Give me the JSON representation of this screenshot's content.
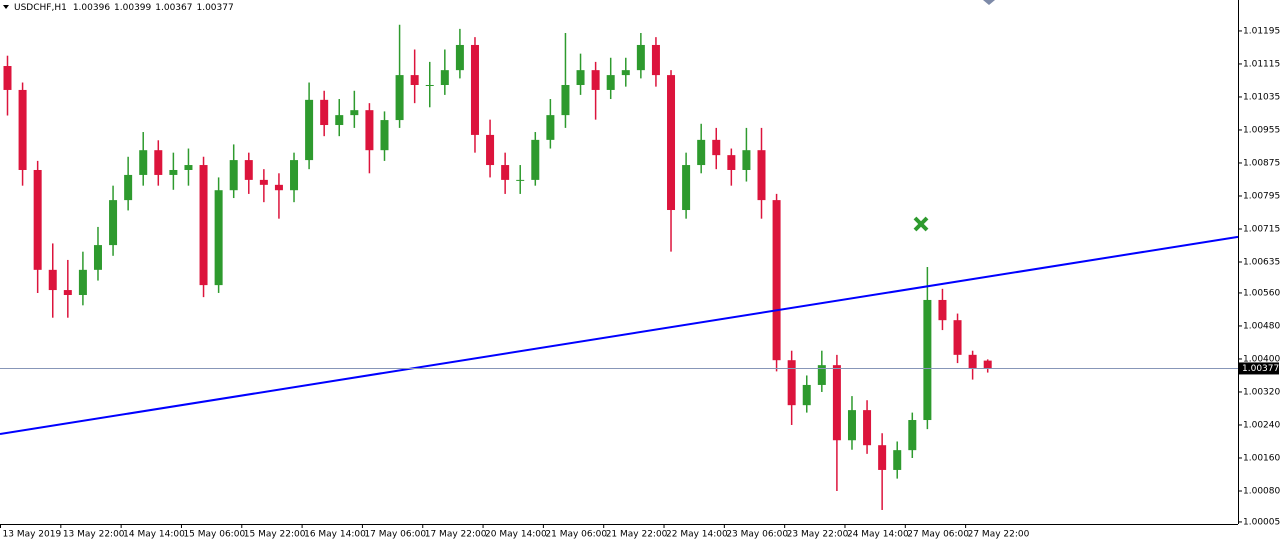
{
  "chart_data": {
    "type": "candlestick",
    "title": "USDCHF,H1",
    "up_color": "#2e9a2e",
    "down_color": "#dc143c",
    "trend_color": "#0000ff",
    "price_line_color": "#8796b8",
    "ylim": [
      1.0,
      1.0127
    ],
    "yticks": [
      1.01195,
      1.01115,
      1.01035,
      1.00955,
      1.00875,
      1.00795,
      1.00715,
      1.00635,
      {
        "value": 1.0056,
        "label": "1.00560"
      },
      {
        "value": 1.0048,
        "label": "1.00480"
      },
      {
        "value": 1.004,
        "label": "1.00400"
      },
      {
        "value": 1.0032,
        "label": "1.00320"
      },
      {
        "value": 1.0024,
        "label": "1.00240"
      },
      {
        "value": 1.0016,
        "label": "1.00160"
      },
      {
        "value": 1.0008,
        "label": "1.00080"
      },
      1.00005
    ],
    "xlabels": [
      "13 May 2019",
      "13 May 22:00",
      "14 May 14:00",
      "15 May 06:00",
      "15 May 22:00",
      "16 May 14:00",
      "17 May 06:00",
      "17 May 22:00",
      "20 May 14:00",
      "21 May 06:00",
      "21 May 22:00",
      "22 May 14:00",
      "23 May 06:00",
      "23 May 22:00",
      "24 May 14:00",
      "27 May 06:00",
      "27 May 22:00"
    ],
    "trendline": [
      1.00218,
      1.00696
    ],
    "ohlc": [
      [
        1.0111,
        1.01135,
        1.0099,
        1.01052
      ],
      [
        1.01052,
        1.0107,
        1.0082,
        1.00858
      ],
      [
        1.00858,
        1.0088,
        1.0056,
        1.00616
      ],
      [
        1.00616,
        1.0068,
        1.005,
        1.00567
      ],
      [
        1.00567,
        1.0064,
        1.005,
        1.00555
      ],
      [
        1.00555,
        1.0066,
        1.0053,
        1.00616
      ],
      [
        1.00616,
        1.0072,
        1.0059,
        1.00676
      ],
      [
        1.00676,
        1.0082,
        1.0065,
        1.00785
      ],
      [
        1.00785,
        1.0089,
        1.0076,
        1.00846
      ],
      [
        1.00846,
        1.0095,
        1.0082,
        1.00906
      ],
      [
        1.00906,
        1.0093,
        1.0082,
        1.00846
      ],
      [
        1.00846,
        1.009,
        1.0081,
        1.00858
      ],
      [
        1.00858,
        1.0091,
        1.0082,
        1.0087
      ],
      [
        1.0087,
        1.0089,
        1.0055,
        1.00579
      ],
      [
        1.00579,
        1.0084,
        1.0056,
        1.00809
      ],
      [
        1.00809,
        1.0092,
        1.0079,
        1.00882
      ],
      [
        1.00882,
        1.009,
        1.008,
        1.00834
      ],
      [
        1.00834,
        1.0086,
        1.0078,
        1.00822
      ],
      [
        1.00822,
        1.0085,
        1.0074,
        1.00809
      ],
      [
        1.00809,
        1.009,
        1.0078,
        1.00882
      ],
      [
        1.00882,
        1.0107,
        1.0086,
        1.01028
      ],
      [
        1.01028,
        1.0105,
        1.0094,
        1.00967
      ],
      [
        1.00967,
        1.0103,
        1.0094,
        1.00991
      ],
      [
        1.00991,
        1.0105,
        1.0096,
        1.01003
      ],
      [
        1.01003,
        1.0102,
        1.0085,
        1.00906
      ],
      [
        1.00906,
        1.01,
        1.0088,
        1.00979
      ],
      [
        1.00979,
        1.0121,
        1.0096,
        1.01088
      ],
      [
        1.01088,
        1.0115,
        1.0102,
        1.01064
      ],
      [
        1.01064,
        1.0112,
        1.0101,
        1.01064
      ],
      [
        1.01064,
        1.0115,
        1.0104,
        1.011
      ],
      [
        1.011,
        1.012,
        1.0108,
        1.01161
      ],
      [
        1.01161,
        1.0118,
        1.009,
        1.00943
      ],
      [
        1.00943,
        1.0098,
        1.0084,
        1.0087
      ],
      [
        1.0087,
        1.009,
        1.008,
        1.00834
      ],
      [
        1.00834,
        1.0087,
        1.008,
        1.00834
      ],
      [
        1.00834,
        1.0095,
        1.0082,
        1.00931
      ],
      [
        1.00931,
        1.0103,
        1.0091,
        1.00991
      ],
      [
        1.00991,
        1.0119,
        1.0096,
        1.01064
      ],
      [
        1.01064,
        1.0114,
        1.0104,
        1.011
      ],
      [
        1.011,
        1.0112,
        1.0098,
        1.01052
      ],
      [
        1.01052,
        1.0113,
        1.0103,
        1.01088
      ],
      [
        1.01088,
        1.0113,
        1.0106,
        1.011
      ],
      [
        1.011,
        1.0119,
        1.0108,
        1.01161
      ],
      [
        1.01161,
        1.0118,
        1.0106,
        1.01088
      ],
      [
        1.01088,
        1.011,
        1.0066,
        1.00761
      ],
      [
        1.00761,
        1.009,
        1.0074,
        1.0087
      ],
      [
        1.0087,
        1.0097,
        1.0085,
        1.00931
      ],
      [
        1.00931,
        1.0096,
        1.0086,
        1.00894
      ],
      [
        1.00894,
        1.0091,
        1.0082,
        1.00858
      ],
      [
        1.00858,
        1.0096,
        1.0083,
        1.00906
      ],
      [
        1.00906,
        1.0096,
        1.0074,
        1.00785
      ],
      [
        1.00785,
        1.008,
        1.0037,
        1.00397
      ],
      [
        1.00397,
        1.0042,
        1.0024,
        1.00288
      ],
      [
        1.00288,
        1.0036,
        1.0027,
        1.00337
      ],
      [
        1.00337,
        1.0042,
        1.0032,
        1.00385
      ],
      [
        1.00385,
        1.0041,
        1.0008,
        1.00203
      ],
      [
        1.00203,
        1.0031,
        1.0018,
        1.00276
      ],
      [
        1.00276,
        1.003,
        1.0017,
        1.00191
      ],
      [
        1.00191,
        1.0022,
        1.00034,
        1.00131
      ],
      [
        1.00131,
        1.002,
        1.0011,
        1.00179
      ],
      [
        1.00179,
        1.0027,
        1.0016,
        1.00252
      ],
      [
        1.00252,
        1.00623,
        1.0023,
        1.00543
      ],
      [
        1.00543,
        1.0057,
        1.0047,
        1.00494
      ],
      [
        1.00494,
        1.0051,
        1.0039,
        1.0041
      ],
      [
        1.0041,
        1.0042,
        1.0035,
        1.00378
      ],
      [
        1.00396,
        1.00399,
        1.00367,
        1.00377
      ]
    ]
  }
}
